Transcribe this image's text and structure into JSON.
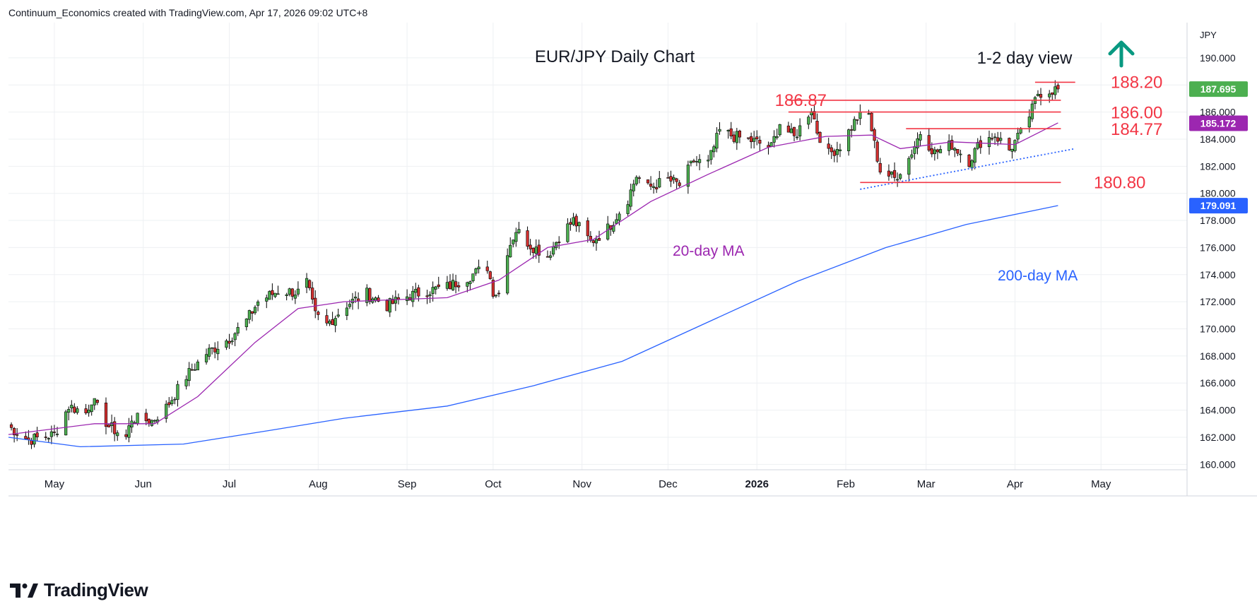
{
  "header": {
    "attribution": "Continuum_Economics created with TradingView.com, Apr 17, 2026 09:02 UTC+8"
  },
  "footer": {
    "brand": "TradingView",
    "logo_icon": "tradingview-logo-icon"
  },
  "chart_data": {
    "type": "candlestick",
    "title": "EUR/JPY Daily Chart",
    "subtitle": "1-2 day view",
    "view_signal_icon": "up-arrow-icon",
    "currency_label": "JPY",
    "ylim": [
      159.6,
      192.6
    ],
    "x_start": "2025-04-15",
    "x_end": "2026-05-31",
    "y_ticks": [
      "160.000",
      "162.000",
      "164.000",
      "166.000",
      "168.000",
      "170.000",
      "172.000",
      "174.000",
      "176.000",
      "178.000",
      "180.000",
      "182.000",
      "184.000",
      "186.000",
      "188.000",
      "190.000"
    ],
    "x_ticks": [
      {
        "label": "May",
        "date": "2025-05-01"
      },
      {
        "label": "Jun",
        "date": "2025-06-01"
      },
      {
        "label": "Jul",
        "date": "2025-07-01"
      },
      {
        "label": "Aug",
        "date": "2025-08-01"
      },
      {
        "label": "Sep",
        "date": "2025-09-01"
      },
      {
        "label": "Oct",
        "date": "2025-10-01"
      },
      {
        "label": "Nov",
        "date": "2025-11-01"
      },
      {
        "label": "Dec",
        "date": "2025-12-01"
      },
      {
        "label": "2026",
        "date": "2026-01-01",
        "bold": true
      },
      {
        "label": "Feb",
        "date": "2026-02-01"
      },
      {
        "label": "Mar",
        "date": "2026-03-01"
      },
      {
        "label": "Apr",
        "date": "2026-04-01"
      },
      {
        "label": "May",
        "date": "2026-05-01"
      }
    ],
    "price_anchors": [
      {
        "date": "2025-04-15",
        "close": 162.8
      },
      {
        "date": "2025-04-22",
        "close": 161.8
      },
      {
        "date": "2025-05-01",
        "close": 162.2
      },
      {
        "date": "2025-05-06",
        "close": 164.3
      },
      {
        "date": "2025-05-12",
        "close": 163.8
      },
      {
        "date": "2025-05-14",
        "close": 164.8
      },
      {
        "date": "2025-05-20",
        "close": 162.8
      },
      {
        "date": "2025-05-26",
        "close": 162.0
      },
      {
        "date": "2025-05-28",
        "close": 163.4
      },
      {
        "date": "2025-06-04",
        "close": 163.2
      },
      {
        "date": "2025-06-09",
        "close": 164.2
      },
      {
        "date": "2025-06-16",
        "close": 166.5
      },
      {
        "date": "2025-06-23",
        "close": 168.2
      },
      {
        "date": "2025-07-01",
        "close": 169.3
      },
      {
        "date": "2025-07-07",
        "close": 170.6
      },
      {
        "date": "2025-07-11",
        "close": 172.0
      },
      {
        "date": "2025-07-18",
        "close": 172.8
      },
      {
        "date": "2025-07-25",
        "close": 172.7
      },
      {
        "date": "2025-07-28",
        "close": 173.4
      },
      {
        "date": "2025-07-31",
        "close": 171.0
      },
      {
        "date": "2025-08-04",
        "close": 170.3
      },
      {
        "date": "2025-08-11",
        "close": 171.8
      },
      {
        "date": "2025-08-18",
        "close": 172.6
      },
      {
        "date": "2025-08-25",
        "close": 171.7
      },
      {
        "date": "2025-09-01",
        "close": 172.4
      },
      {
        "date": "2025-09-08",
        "close": 172.8
      },
      {
        "date": "2025-09-15",
        "close": 173.1
      },
      {
        "date": "2025-09-22",
        "close": 173.8
      },
      {
        "date": "2025-09-29",
        "close": 174.6
      },
      {
        "date": "2025-10-01",
        "close": 172.8
      },
      {
        "date": "2025-10-03",
        "close": 172.6
      },
      {
        "date": "2025-10-06",
        "close": 175.8
      },
      {
        "date": "2025-10-09",
        "close": 177.3
      },
      {
        "date": "2025-10-14",
        "close": 176.2
      },
      {
        "date": "2025-10-20",
        "close": 175.4
      },
      {
        "date": "2025-10-24",
        "close": 176.8
      },
      {
        "date": "2025-10-29",
        "close": 178.0
      },
      {
        "date": "2025-11-04",
        "close": 176.4
      },
      {
        "date": "2025-11-10",
        "close": 177.4
      },
      {
        "date": "2025-11-17",
        "close": 179.6
      },
      {
        "date": "2025-11-20",
        "close": 181.3
      },
      {
        "date": "2025-11-24",
        "close": 180.4
      },
      {
        "date": "2025-12-01",
        "close": 181.0
      },
      {
        "date": "2025-12-05",
        "close": 180.6
      },
      {
        "date": "2025-12-10",
        "close": 182.4
      },
      {
        "date": "2025-12-15",
        "close": 182.2
      },
      {
        "date": "2025-12-19",
        "close": 184.6
      },
      {
        "date": "2025-12-24",
        "close": 184.2
      },
      {
        "date": "2025-12-30",
        "close": 183.9
      },
      {
        "date": "2026-01-06",
        "close": 183.4
      },
      {
        "date": "2026-01-09",
        "close": 185.2
      },
      {
        "date": "2026-01-14",
        "close": 184.1
      },
      {
        "date": "2026-01-20",
        "close": 186.3
      },
      {
        "date": "2026-01-22",
        "close": 184.6
      },
      {
        "date": "2026-01-26",
        "close": 182.9
      },
      {
        "date": "2026-01-30",
        "close": 183.5
      },
      {
        "date": "2026-02-05",
        "close": 185.6
      },
      {
        "date": "2026-02-09",
        "close": 185.8
      },
      {
        "date": "2026-02-11",
        "close": 183.6
      },
      {
        "date": "2026-02-13",
        "close": 181.7
      },
      {
        "date": "2026-02-18",
        "close": 181.1
      },
      {
        "date": "2026-02-23",
        "close": 182.6
      },
      {
        "date": "2026-02-27",
        "close": 184.5
      },
      {
        "date": "2026-03-04",
        "close": 183.0
      },
      {
        "date": "2026-03-10",
        "close": 183.6
      },
      {
        "date": "2026-03-16",
        "close": 182.4
      },
      {
        "date": "2026-03-20",
        "close": 183.8
      },
      {
        "date": "2026-03-25",
        "close": 184.3
      },
      {
        "date": "2026-03-30",
        "close": 183.2
      },
      {
        "date": "2026-04-03",
        "close": 184.4
      },
      {
        "date": "2026-04-07",
        "close": 186.2
      },
      {
        "date": "2026-04-09",
        "close": 187.4
      },
      {
        "date": "2026-04-13",
        "close": 187.6
      },
      {
        "date": "2026-04-16",
        "close": 187.7
      }
    ],
    "ma20": {
      "name": "20-day MA",
      "color": "#9c27b0",
      "points": [
        {
          "date": "2025-04-15",
          "value": 162.2
        },
        {
          "date": "2025-05-15",
          "value": 163.0
        },
        {
          "date": "2025-06-05",
          "value": 163.0
        },
        {
          "date": "2025-06-20",
          "value": 165.0
        },
        {
          "date": "2025-07-10",
          "value": 169.0
        },
        {
          "date": "2025-07-25",
          "value": 171.5
        },
        {
          "date": "2025-08-10",
          "value": 172.0
        },
        {
          "date": "2025-09-15",
          "value": 172.3
        },
        {
          "date": "2025-10-03",
          "value": 173.6
        },
        {
          "date": "2025-10-20",
          "value": 176.0
        },
        {
          "date": "2025-11-05",
          "value": 176.6
        },
        {
          "date": "2025-11-25",
          "value": 179.4
        },
        {
          "date": "2025-12-15",
          "value": 181.4
        },
        {
          "date": "2026-01-05",
          "value": 183.4
        },
        {
          "date": "2026-01-25",
          "value": 184.2
        },
        {
          "date": "2026-02-10",
          "value": 184.3
        },
        {
          "date": "2026-02-20",
          "value": 183.3
        },
        {
          "date": "2026-03-10",
          "value": 183.8
        },
        {
          "date": "2026-04-01",
          "value": 183.6
        },
        {
          "date": "2026-04-16",
          "value": 185.2
        }
      ]
    },
    "ma200": {
      "name": "200-day MA",
      "color": "#2962ff",
      "points": [
        {
          "date": "2025-04-15",
          "value": 162.0
        },
        {
          "date": "2025-05-10",
          "value": 161.3
        },
        {
          "date": "2025-06-15",
          "value": 161.5
        },
        {
          "date": "2025-07-15",
          "value": 162.5
        },
        {
          "date": "2025-08-10",
          "value": 163.4
        },
        {
          "date": "2025-09-15",
          "value": 164.3
        },
        {
          "date": "2025-10-15",
          "value": 165.8
        },
        {
          "date": "2025-11-15",
          "value": 167.6
        },
        {
          "date": "2025-12-15",
          "value": 170.5
        },
        {
          "date": "2026-01-15",
          "value": 173.5
        },
        {
          "date": "2026-02-15",
          "value": 176.0
        },
        {
          "date": "2026-03-15",
          "value": 177.7
        },
        {
          "date": "2026-04-16",
          "value": 179.1
        }
      ]
    },
    "levels": [
      {
        "label": "188.20",
        "value": 188.2,
        "x_from": "2026-04-08",
        "x_to": "2026-04-22"
      },
      {
        "label": "186.87",
        "value": 186.87,
        "x_from": "2026-01-12",
        "x_to": "2026-04-17"
      },
      {
        "label": "186.00",
        "value": 186.0,
        "x_from": "2026-01-12",
        "x_to": "2026-04-17"
      },
      {
        "label": "184.77",
        "value": 184.77,
        "x_from": "2026-02-22",
        "x_to": "2026-04-17"
      },
      {
        "label": "180.80",
        "value": 180.8,
        "x_from": "2026-02-06",
        "x_to": "2026-04-17"
      }
    ],
    "trendline": {
      "from": {
        "date": "2026-02-06",
        "value": 180.3
      },
      "to": {
        "date": "2026-04-22",
        "value": 183.3
      },
      "style": "dotted"
    },
    "price_badges": [
      {
        "label": "187.695",
        "value": 187.695,
        "color": "#4caf50"
      },
      {
        "label": "185.172",
        "value": 185.172,
        "color": "#9c27b0"
      },
      {
        "label": "179.091",
        "value": 179.091,
        "color": "#2962ff"
      }
    ],
    "annotations": [
      {
        "text": "20-day MA",
        "color": "#9c27b0"
      },
      {
        "text": "200-day MA",
        "color": "#2962ff"
      }
    ],
    "colors": {
      "up": "#4caf50",
      "down": "#d32f2f",
      "level": "#f23645",
      "grid": "#eef0f3",
      "arrow": "#089981"
    }
  }
}
